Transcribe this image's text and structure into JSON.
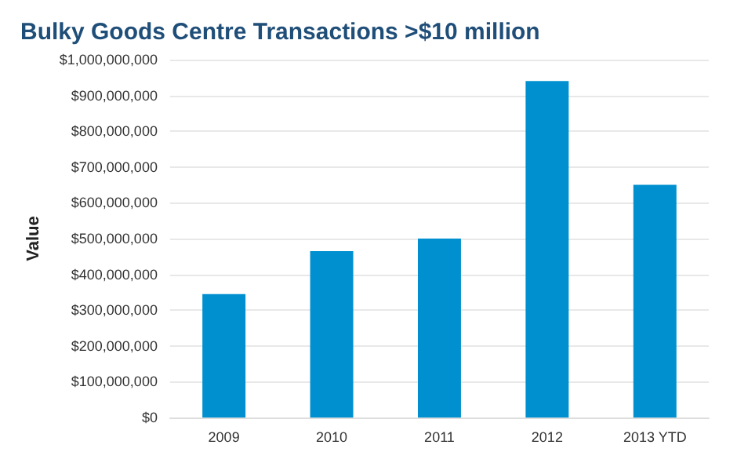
{
  "chart_data": {
    "type": "bar",
    "title": "Bulky Goods Centre Transactions >$10 million",
    "ylabel": "Value",
    "categories": [
      "2009",
      "2010",
      "2011",
      "2012",
      "2013 YTD"
    ],
    "values": [
      345000000,
      465000000,
      500000000,
      940000000,
      650000000
    ],
    "color": "#0090d0",
    "ylim": [
      0,
      1000000000
    ],
    "yticks": [
      {
        "value": 0,
        "label": "$0"
      },
      {
        "value": 100000000,
        "label": "$100,000,000"
      },
      {
        "value": 200000000,
        "label": "$200,000,000"
      },
      {
        "value": 300000000,
        "label": "$300,000,000"
      },
      {
        "value": 400000000,
        "label": "$400,000,000"
      },
      {
        "value": 500000000,
        "label": "$500,000,000"
      },
      {
        "value": 600000000,
        "label": "$600,000,000"
      },
      {
        "value": 700000000,
        "label": "$700,000,000"
      },
      {
        "value": 800000000,
        "label": "$800,000,000"
      },
      {
        "value": 900000000,
        "label": "$900,000,000"
      },
      {
        "value": 1000000000,
        "label": "$1,000,000,000"
      }
    ],
    "grid": "y"
  }
}
